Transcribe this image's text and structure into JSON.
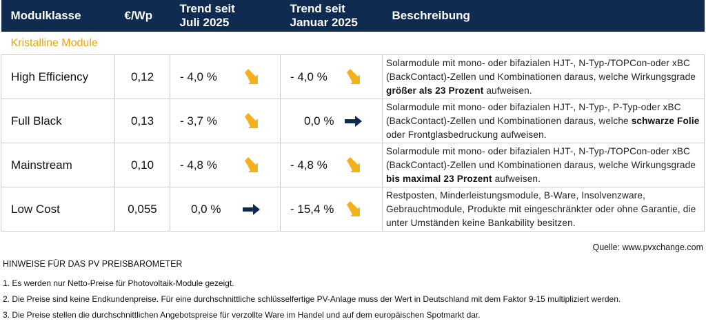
{
  "table": {
    "columns": [
      "Modulklasse",
      "€/Wp",
      "Trend seit Juli 2025",
      "Trend seit Januar 2025",
      "Beschreibung"
    ],
    "section": "Kristalline Module",
    "rows": [
      {
        "name": "High Efficiency",
        "price": "0,12",
        "trend_jul": "-  4,0 %",
        "trend_jan": "-  4,0 %",
        "desc": [
          "Solarmodule mit mono- oder bifazialen HJT-, N-Typ-/TOPCon-oder xBC (BackContact)-Zellen und Kombinationen daraus, welche Wirkungsgrade ",
          "größer als 23 Prozent",
          " aufweisen."
        ]
      },
      {
        "name": "Full Black",
        "price": "0,13",
        "trend_jul": "-  3,7 %",
        "trend_jan": "0,0 %",
        "desc": [
          "Solarmodule mit mono- oder bifazialen HJT-, N-Typ-, P-Typ-oder xBC (BackContact)-Zellen und Kombinationen daraus, welche ",
          "schwarze Folie",
          " oder Frontglasbedruckung aufweisen."
        ]
      },
      {
        "name": "Mainstream",
        "price": "0,10",
        "trend_jul": "-  4,8 %",
        "trend_jan": "-  4,8 %",
        "desc": [
          "Solarmodule mit mono- oder bifazialen HJT-, N-Typ-/TOPCon-oder xBC (BackContact)-Zellen und Kombinationen daraus, welche Wirkungsgrade ",
          "bis maximal 23 Prozent",
          " aufweisen."
        ]
      },
      {
        "name": "Low Cost",
        "price": "0,055",
        "trend_jul": "0,0 %",
        "trend_jan": "- 15,4 %",
        "desc": [
          "Restposten, Minderleistungsmodule, B-Ware, Insolvenzware, Gebrauchtmodule, Produkte mit eingeschränkter oder ohne Garantie, die unter Umständen keine Bankability besitzen."
        ]
      }
    ]
  },
  "source": "Quelle: www.pvxchange.com",
  "notes": {
    "title": "HINWEISE FÜR DAS PV PREISBAROMETER",
    "items": [
      "1.  Es werden nur Netto-Preise für Photovoltaik-Module gezeigt.",
      "2. Die Preise sind keine Endkundenpreise. Für eine durchschnittliche schlüsselfertige PV-Anlage muss der Wert in Deutschland mit dem Faktor 9-15 multipliziert werden.",
      "3. Die Preise stellen die durchschnittlichen Angebotspreise für verzollte Ware im Handel und auf dem europäischen Spotmarkt dar."
    ]
  }
}
